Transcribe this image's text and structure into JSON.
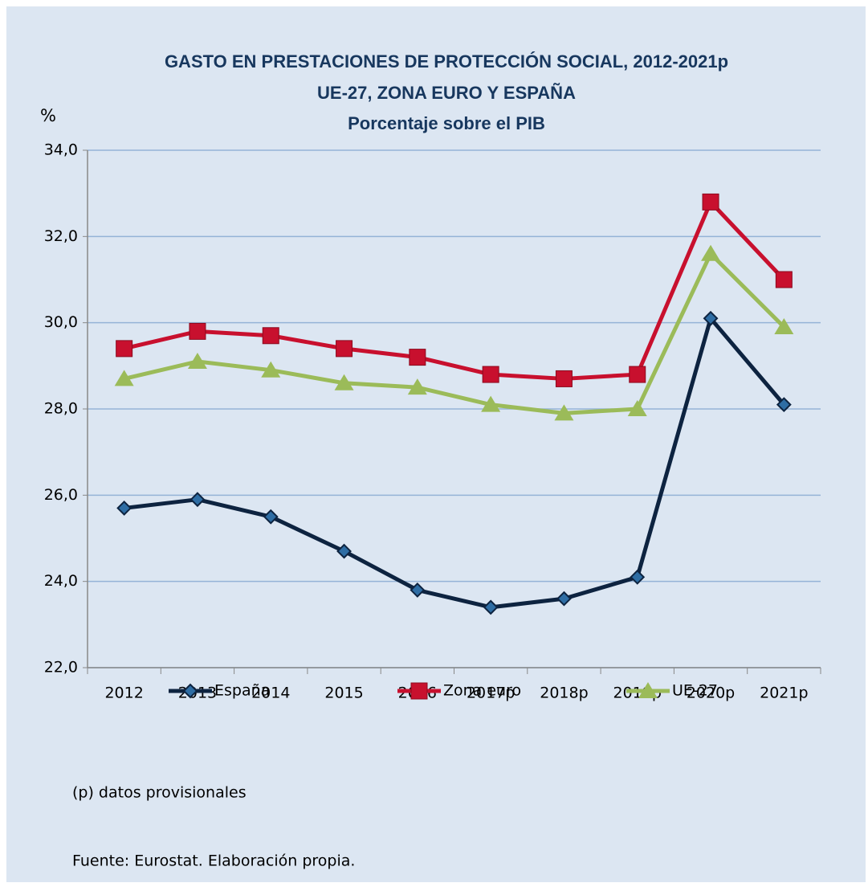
{
  "chart_data": {
    "type": "line",
    "title": [
      "GASTO EN PRESTACIONES DE PROTECCIÓN SOCIAL, 2012-2021p",
      "UE-27, ZONA EURO Y ESPAÑA",
      "Porcentaje sobre el PIB"
    ],
    "y_label": "%",
    "categories": [
      "2012",
      "2013",
      "2014",
      "2015",
      "2016",
      "2017p",
      "2018p",
      "2019p",
      "2020p",
      "2021p"
    ],
    "series": [
      {
        "name": "España",
        "color": "#0d2340",
        "marker": "diamond",
        "values": [
          25.7,
          25.9,
          25.5,
          24.7,
          23.8,
          23.4,
          23.6,
          24.1,
          30.1,
          28.1
        ]
      },
      {
        "name": "Zona euro",
        "color": "#c8102e",
        "marker": "square",
        "values": [
          29.4,
          29.8,
          29.7,
          29.4,
          29.2,
          28.8,
          28.7,
          28.8,
          32.8,
          31.0
        ]
      },
      {
        "name": "UE-27",
        "color": "#9bbb59",
        "marker": "triangle",
        "values": [
          28.7,
          29.1,
          28.9,
          28.6,
          28.5,
          28.1,
          27.9,
          28.0,
          31.6,
          29.9
        ]
      }
    ],
    "ylim": [
      22,
      34
    ],
    "yticks": [
      {
        "value": 22,
        "label": "22,0"
      },
      {
        "value": 24,
        "label": "24,0"
      },
      {
        "value": 26,
        "label": "26,0"
      },
      {
        "value": 28,
        "label": "28,0"
      },
      {
        "value": 30,
        "label": "30,0"
      },
      {
        "value": 32,
        "label": "32,0"
      },
      {
        "value": 34,
        "label": "34,0"
      }
    ],
    "grid": true,
    "legend": "bottom",
    "notes": [
      "(p) datos provisionales",
      "Fuente:  Eurostat. Elaboración propia."
    ]
  }
}
